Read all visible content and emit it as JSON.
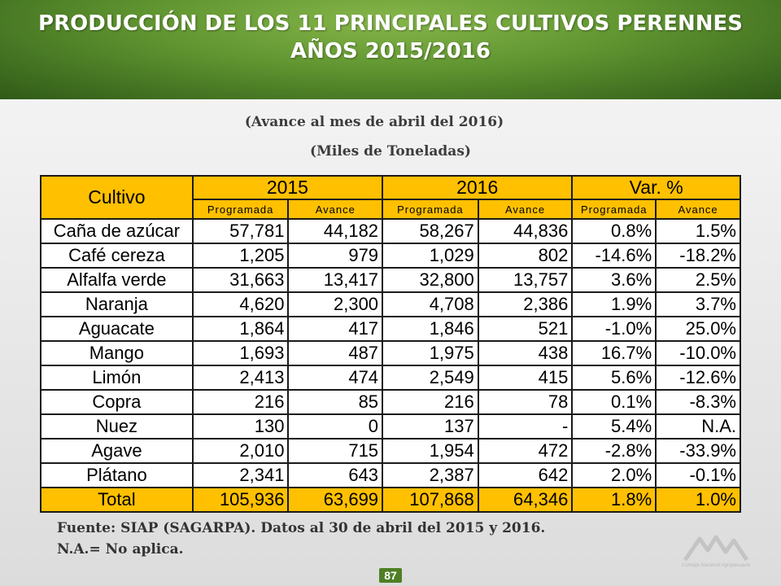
{
  "header": {
    "title_line1": "PRODUCCIÓN DE LOS 11 PRINCIPALES CULTIVOS PERENNES",
    "title_line2": "AÑOS 2015/2016"
  },
  "subtitle": {
    "line1": "(Avance al mes de abril del 2016)",
    "line2": "(Miles de Toneladas)"
  },
  "table": {
    "header_main": [
      "Cultivo",
      "2015",
      "2016",
      "Var. %"
    ],
    "header_sub": [
      "Programada",
      "Avance",
      "Programada",
      "Avance",
      "Programada",
      "Avance"
    ],
    "rows": [
      [
        "Caña de azúcar",
        "57,781",
        "44,182",
        "58,267",
        "44,836",
        "0.8%",
        "1.5%"
      ],
      [
        "Café cereza",
        "1,205",
        "979",
        "1,029",
        "802",
        "-14.6%",
        "-18.2%"
      ],
      [
        "Alfalfa verde",
        "31,663",
        "13,417",
        "32,800",
        "13,757",
        "3.6%",
        "2.5%"
      ],
      [
        "Naranja",
        "4,620",
        "2,300",
        "4,708",
        "2,386",
        "1.9%",
        "3.7%"
      ],
      [
        "Aguacate",
        "1,864",
        "417",
        "1,846",
        "521",
        "-1.0%",
        "25.0%"
      ],
      [
        "Mango",
        "1,693",
        "487",
        "1,975",
        "438",
        "16.7%",
        "-10.0%"
      ],
      [
        "Limón",
        "2,413",
        "474",
        "2,549",
        "415",
        "5.6%",
        "-12.6%"
      ],
      [
        "Copra",
        "216",
        "85",
        "216",
        "78",
        "0.1%",
        "-8.3%"
      ],
      [
        "Nuez",
        "130",
        "0",
        "137",
        "-",
        "5.4%",
        "N.A."
      ],
      [
        "Agave",
        "2,010",
        "715",
        "1,954",
        "472",
        "-2.8%",
        "-33.9%"
      ],
      [
        "Plátano",
        "2,341",
        "643",
        "2,387",
        "642",
        "2.0%",
        "-0.1%"
      ]
    ],
    "total": [
      "Total",
      "105,936",
      "63,699",
      "107,868",
      "64,346",
      "1.8%",
      "1.0%"
    ]
  },
  "notes": {
    "source": "Fuente: SIAP (SAGARPA). Datos al 30 de abril del 2015 y 2016.",
    "na": "N.A.= No aplica."
  },
  "page_number": "87",
  "logo": {
    "text": "Consejo Nacional Agropecuario",
    "color": "#b7b7b7"
  },
  "colors": {
    "header_green": "#5f9430",
    "table_header": "#ffc000"
  }
}
